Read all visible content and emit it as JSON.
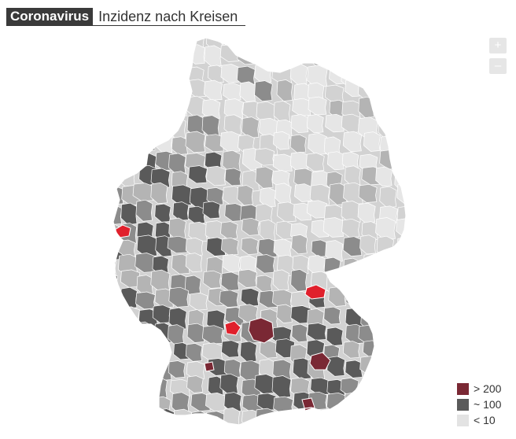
{
  "header": {
    "badge": "Coronavirus",
    "title": "Inzidenz nach Kreisen"
  },
  "zoom": {
    "in_label": "+",
    "out_label": "–"
  },
  "legend": [
    {
      "label": "> 200",
      "color": "#7a2834"
    },
    {
      "label": "~ 100",
      "color": "#5a5a5a"
    },
    {
      "label": "< 10",
      "color": "#e3e3e3"
    }
  ],
  "colors": {
    "lowest": "#e6e6e6",
    "low": "#d2d2d2",
    "medium": "#b4b4b4",
    "mid_dark": "#8c8c8c",
    "high": "#5a5a5a",
    "very_high": "#7a2834",
    "hotspot": "#e0202c",
    "border": "#ffffff"
  },
  "map": {
    "type": "choropleth",
    "region": "Deutschland",
    "unit": "Kreise"
  }
}
